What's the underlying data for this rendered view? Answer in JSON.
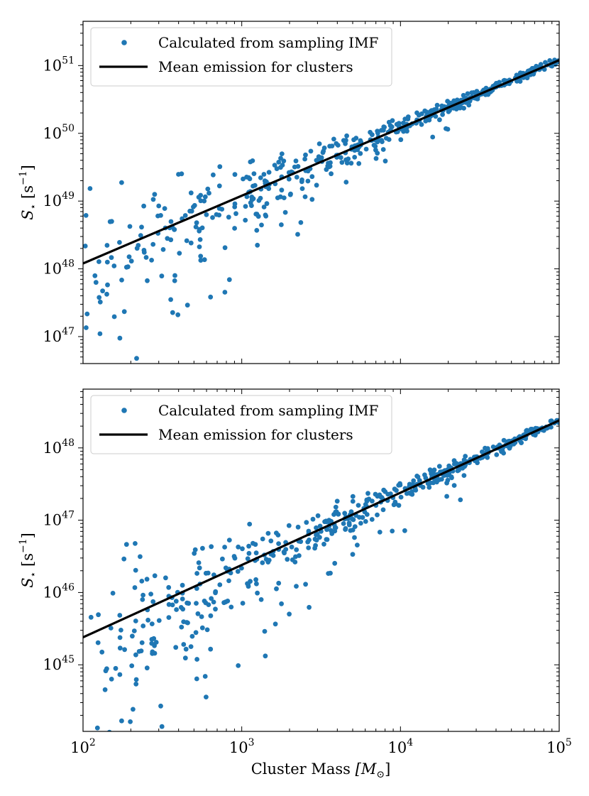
{
  "figure": {
    "xlabel_main": "Cluster Mass ",
    "xlabel_unit": "[M",
    "xlabel_unit_sub": "⊙",
    "xlabel_unit_close": "]"
  },
  "chart_data": [
    {
      "type": "scatter",
      "title": "",
      "xscale": "log",
      "yscale": "log",
      "xlim": [
        100,
        100000
      ],
      "ylim": [
        4e+46,
        4.5e+51
      ],
      "xlabel": "",
      "ylabel_symbol": "S",
      "ylabel_sub": "⋆",
      "ylabel_unit_open": " [s",
      "ylabel_unit_exp": "−1",
      "ylabel_unit_close": "]",
      "x_ticks": [
        {
          "value": 100,
          "base": "10",
          "exp": "2"
        },
        {
          "value": 1000,
          "base": "10",
          "exp": "3"
        },
        {
          "value": 10000,
          "base": "10",
          "exp": "4"
        },
        {
          "value": 100000,
          "base": "10",
          "exp": "5"
        }
      ],
      "x_ticklabels_visible": false,
      "y_ticks": [
        {
          "value": 1e+47,
          "base": "10",
          "exp": "47"
        },
        {
          "value": 1e+48,
          "base": "10",
          "exp": "48"
        },
        {
          "value": 1e+49,
          "base": "10",
          "exp": "49"
        },
        {
          "value": 1e+50,
          "base": "10",
          "exp": "50"
        },
        {
          "value": 1e+51,
          "base": "10",
          "exp": "51"
        }
      ],
      "legend": {
        "placement": "top-left",
        "entries": [
          {
            "label": "Calculated from sampling IMF",
            "marker": "dot",
            "color": "#1f77b4"
          },
          {
            "label": "Mean emission for clusters",
            "marker": "line",
            "color": "#000000"
          }
        ]
      },
      "series": [
        {
          "name": "Calculated from sampling IMF",
          "kind": "scatter",
          "color": "#1f77b4",
          "seed": 12345,
          "count": 520,
          "mean_line_ref": "Mean emission for clusters",
          "logmass_range": [
            2.0,
            5.0
          ],
          "scatter_dex_at_low_mass": 1.2,
          "scatter_dex_at_high_mass": 0.06,
          "lower_tail_dex": 1.6
        },
        {
          "name": "Mean emission for clusters",
          "kind": "line",
          "color": "#000000",
          "x": [
            100,
            100000
          ],
          "y": [
            1.2e+48,
            1.2e+51
          ]
        }
      ]
    },
    {
      "type": "scatter",
      "title": "",
      "xscale": "log",
      "yscale": "log",
      "xlim": [
        100,
        100000
      ],
      "ylim": [
        1.2e+44,
        6.5e+48
      ],
      "xlabel": "Cluster Mass [M⊙]",
      "ylabel_symbol": "S",
      "ylabel_sub": "⋆",
      "ylabel_unit_open": " [s",
      "ylabel_unit_exp": "−1",
      "ylabel_unit_close": "]",
      "x_ticks": [
        {
          "value": 100,
          "base": "10",
          "exp": "2"
        },
        {
          "value": 1000,
          "base": "10",
          "exp": "3"
        },
        {
          "value": 10000,
          "base": "10",
          "exp": "4"
        },
        {
          "value": 100000,
          "base": "10",
          "exp": "5"
        }
      ],
      "x_ticklabels_visible": true,
      "y_ticks": [
        {
          "value": 1e+45,
          "base": "10",
          "exp": "45"
        },
        {
          "value": 1e+46,
          "base": "10",
          "exp": "46"
        },
        {
          "value": 1e+47,
          "base": "10",
          "exp": "47"
        },
        {
          "value": 1e+48,
          "base": "10",
          "exp": "48"
        }
      ],
      "legend": {
        "placement": "top-left",
        "entries": [
          {
            "label": "Calculated from sampling IMF",
            "marker": "dot",
            "color": "#1f77b4"
          },
          {
            "label": "Mean emission for clusters",
            "marker": "line",
            "color": "#000000"
          }
        ]
      },
      "series": [
        {
          "name": "Calculated from sampling IMF",
          "kind": "scatter",
          "color": "#1f77b4",
          "seed": 67890,
          "count": 520,
          "mean_line_ref": "Mean emission for clusters",
          "logmass_range": [
            2.0,
            5.0
          ],
          "scatter_dex_at_low_mass": 1.3,
          "scatter_dex_at_high_mass": 0.07,
          "lower_tail_dex": 1.9
        },
        {
          "name": "Mean emission for clusters",
          "kind": "line",
          "color": "#000000",
          "x": [
            100,
            100000
          ],
          "y": [
            2.4e+45,
            2.4e+48
          ]
        }
      ]
    }
  ]
}
